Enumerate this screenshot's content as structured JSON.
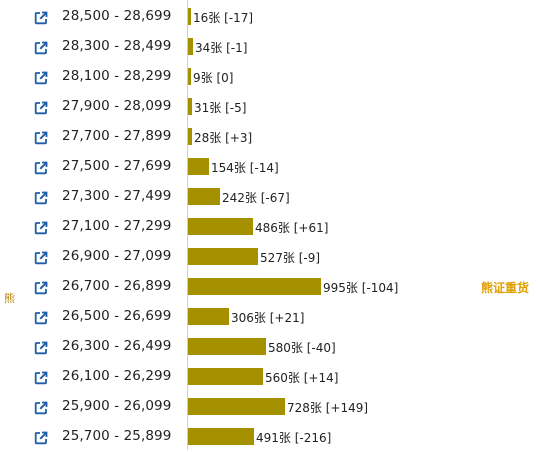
{
  "side_label": "熊",
  "marker_label": "熊证重货",
  "accent_color": "#a59100",
  "rows": [
    {
      "range": "28,500 - 28,699",
      "count": 16,
      "label": "16张 [-17]"
    },
    {
      "range": "28,300 - 28,499",
      "count": 34,
      "label": "34张 [-1]"
    },
    {
      "range": "28,100 - 28,299",
      "count": 9,
      "label": "9张 [0]"
    },
    {
      "range": "27,900 - 28,099",
      "count": 31,
      "label": "31张 [-5]"
    },
    {
      "range": "27,700 - 27,899",
      "count": 28,
      "label": "28张 [+3]"
    },
    {
      "range": "27,500 - 27,699",
      "count": 154,
      "label": "154张 [-14]"
    },
    {
      "range": "27,300 - 27,499",
      "count": 242,
      "label": "242张 [-67]"
    },
    {
      "range": "27,100 - 27,299",
      "count": 486,
      "label": "486张 [+61]"
    },
    {
      "range": "26,900 - 27,099",
      "count": 527,
      "label": "527张 [-9]"
    },
    {
      "range": "26,700 - 26,899",
      "count": 995,
      "label": "995张 [-104]"
    },
    {
      "range": "26,500 - 26,699",
      "count": 306,
      "label": "306张 [+21]"
    },
    {
      "range": "26,300 - 26,499",
      "count": 580,
      "label": "580张 [-40]"
    },
    {
      "range": "26,100 - 26,299",
      "count": 560,
      "label": "560张 [+14]"
    },
    {
      "range": "25,900 - 26,099",
      "count": 728,
      "label": "728张 [+149]"
    },
    {
      "range": "25,700 - 25,899",
      "count": 491,
      "label": "491张 [-216]"
    }
  ]
}
